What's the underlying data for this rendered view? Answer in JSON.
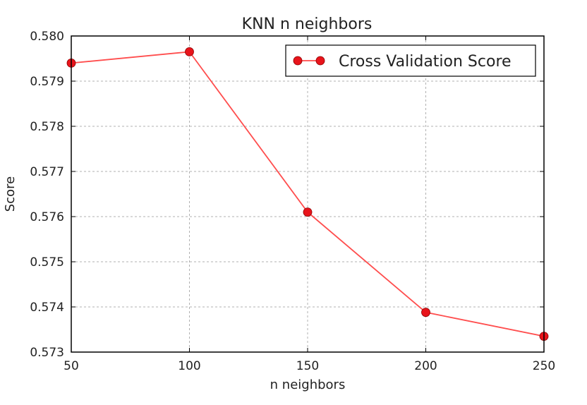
{
  "chart_data": {
    "type": "line",
    "title": "KNN n neighbors",
    "xlabel": "n neighbors",
    "ylabel": "Score",
    "xlim": [
      50,
      250
    ],
    "ylim": [
      0.573,
      0.58
    ],
    "x_ticks": [
      50,
      100,
      150,
      200,
      250
    ],
    "x_tick_labels": [
      "50",
      "100",
      "150",
      "200",
      "250"
    ],
    "y_ticks": [
      0.573,
      0.574,
      0.575,
      0.576,
      0.577,
      0.578,
      0.579,
      0.58
    ],
    "y_tick_labels": [
      "0.573",
      "0.574",
      "0.575",
      "0.576",
      "0.577",
      "0.578",
      "0.579",
      "0.580"
    ],
    "grid": true,
    "legend_position": "top-right",
    "series": [
      {
        "name": "Cross Validation Score",
        "color": "#ff4d4d",
        "marker_color": "#e8141b",
        "x": [
          50,
          100,
          150,
          200,
          250
        ],
        "y": [
          0.5794,
          0.57965,
          0.5761,
          0.57388,
          0.57335
        ]
      }
    ]
  }
}
